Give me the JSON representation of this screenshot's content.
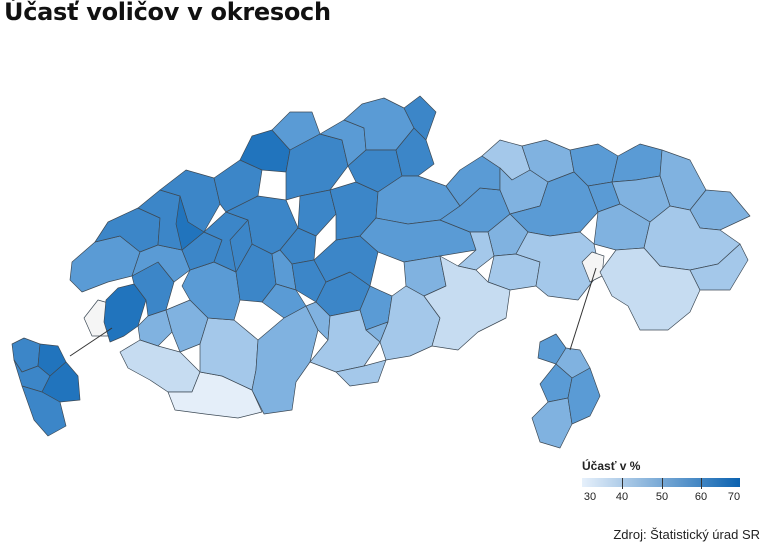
{
  "title": "Účasť voličov v okresoch",
  "legend": {
    "title": "Účasť v %",
    "labels": [
      "30",
      "40",
      "50",
      "60",
      "70"
    ],
    "color_low": "#e6f0fb",
    "color_high": "#0b62b0"
  },
  "source": "Zdroj: Štatistický úrad SR",
  "colors": {
    "border": "#3d4a56",
    "no_data": "#f5f5f5",
    "scale": [
      "#e4eef9",
      "#c6dcf1",
      "#a4c8ea",
      "#80b2e0",
      "#5a9bd5",
      "#3c86c8",
      "#2174bd"
    ]
  }
}
